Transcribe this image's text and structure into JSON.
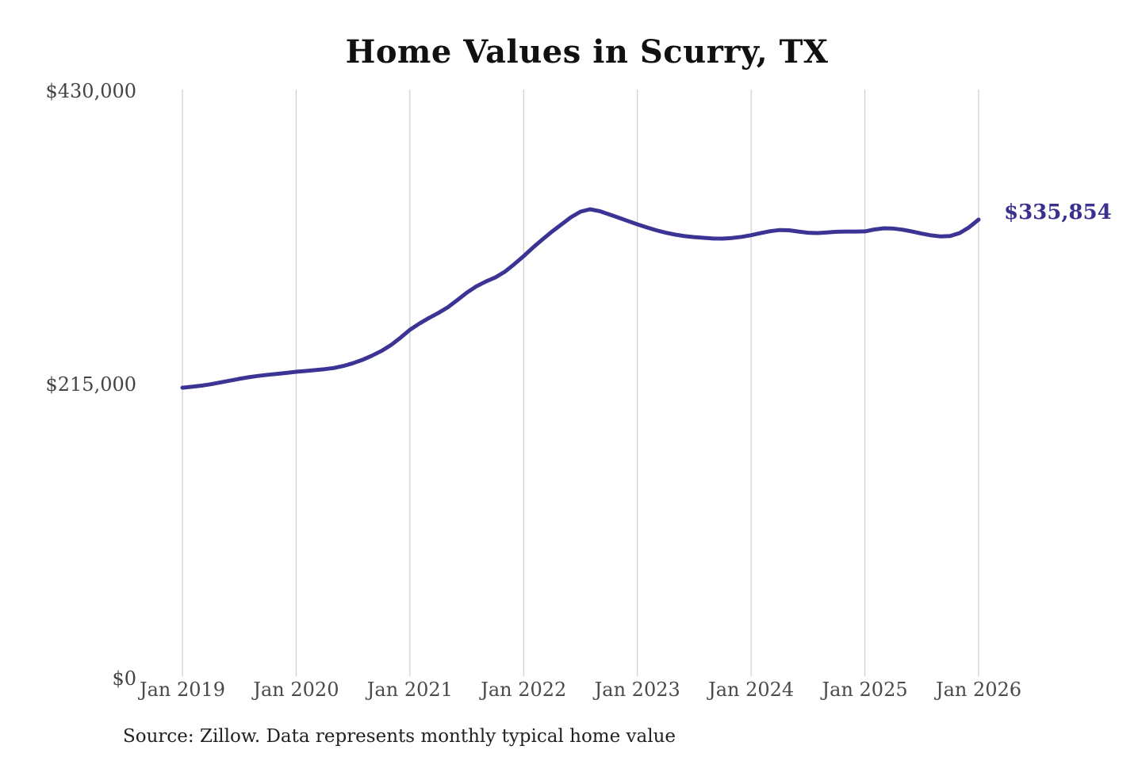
{
  "title": "Home Values in Scurry, TX",
  "footer": {
    "source": "Source: Zillow. Data represents monthly typical home value"
  },
  "colors": {
    "line": "#3b3494",
    "end_label": "#3a318f",
    "gridline": "#cfcfcf",
    "axis_text": "#4a4a4a",
    "title_text": "#111111",
    "background": "#ffffff"
  },
  "chart_data": {
    "type": "line",
    "title": "Home Values in Scurry, TX",
    "series_name": "Monthly typical home value",
    "xlabel": "",
    "ylabel": "",
    "ylim": [
      0,
      430000
    ],
    "grid": "vertical-only",
    "legend": "none",
    "end_label": "$335,854",
    "end_value": 335854,
    "y_ticks": [
      430000,
      215000,
      0
    ],
    "y_tick_labels": [
      "$430,000",
      "$215,000",
      "$0"
    ],
    "x_tick_labels": [
      "Jan 2019",
      "Jan 2020",
      "Jan 2021",
      "Jan 2022",
      "Jan 2023",
      "Jan 2024",
      "Jan 2025",
      "Jan 2026"
    ],
    "x": [
      "2019-01",
      "2019-02",
      "2019-03",
      "2019-04",
      "2019-05",
      "2019-06",
      "2019-07",
      "2019-08",
      "2019-09",
      "2019-10",
      "2019-11",
      "2019-12",
      "2020-01",
      "2020-02",
      "2020-03",
      "2020-04",
      "2020-05",
      "2020-06",
      "2020-07",
      "2020-08",
      "2020-09",
      "2020-10",
      "2020-11",
      "2020-12",
      "2021-01",
      "2021-02",
      "2021-03",
      "2021-04",
      "2021-05",
      "2021-06",
      "2021-07",
      "2021-08",
      "2021-09",
      "2021-10",
      "2021-11",
      "2021-12",
      "2022-01",
      "2022-02",
      "2022-03",
      "2022-04",
      "2022-05",
      "2022-06",
      "2022-07",
      "2022-08",
      "2022-09",
      "2022-10",
      "2022-11",
      "2022-12",
      "2023-01",
      "2023-02",
      "2023-03",
      "2023-04",
      "2023-05",
      "2023-06",
      "2023-07",
      "2023-08",
      "2023-09",
      "2023-10",
      "2023-11",
      "2023-12",
      "2024-01",
      "2024-02",
      "2024-03",
      "2024-04",
      "2024-05",
      "2024-06",
      "2024-07",
      "2024-08",
      "2024-09",
      "2024-10",
      "2024-11",
      "2024-12",
      "2025-01",
      "2025-02",
      "2025-03",
      "2025-04",
      "2025-05",
      "2025-06",
      "2025-07",
      "2025-08",
      "2025-09",
      "2025-10",
      "2025-11",
      "2025-12",
      "2026-01"
    ],
    "values": [
      212600,
      213300,
      214100,
      215200,
      216500,
      217800,
      219100,
      220300,
      221300,
      222100,
      222800,
      223500,
      224300,
      224900,
      225500,
      226200,
      227100,
      228600,
      230600,
      233100,
      236100,
      239600,
      243900,
      249200,
      255100,
      259600,
      263700,
      267400,
      271600,
      276800,
      282300,
      286900,
      290400,
      293400,
      297600,
      303100,
      309100,
      315400,
      321400,
      327100,
      332400,
      337600,
      341700,
      343400,
      342100,
      339700,
      337300,
      334800,
      332400,
      330100,
      328000,
      326200,
      324800,
      323700,
      323000,
      322500,
      322000,
      321900,
      322400,
      323200,
      324400,
      325900,
      327300,
      328200,
      328000,
      327100,
      326200,
      326000,
      326400,
      326900,
      327100,
      327100,
      327200,
      328600,
      329500,
      329300,
      328400,
      327100,
      325600,
      324300,
      323500,
      323800,
      326000,
      330200,
      335854
    ]
  }
}
